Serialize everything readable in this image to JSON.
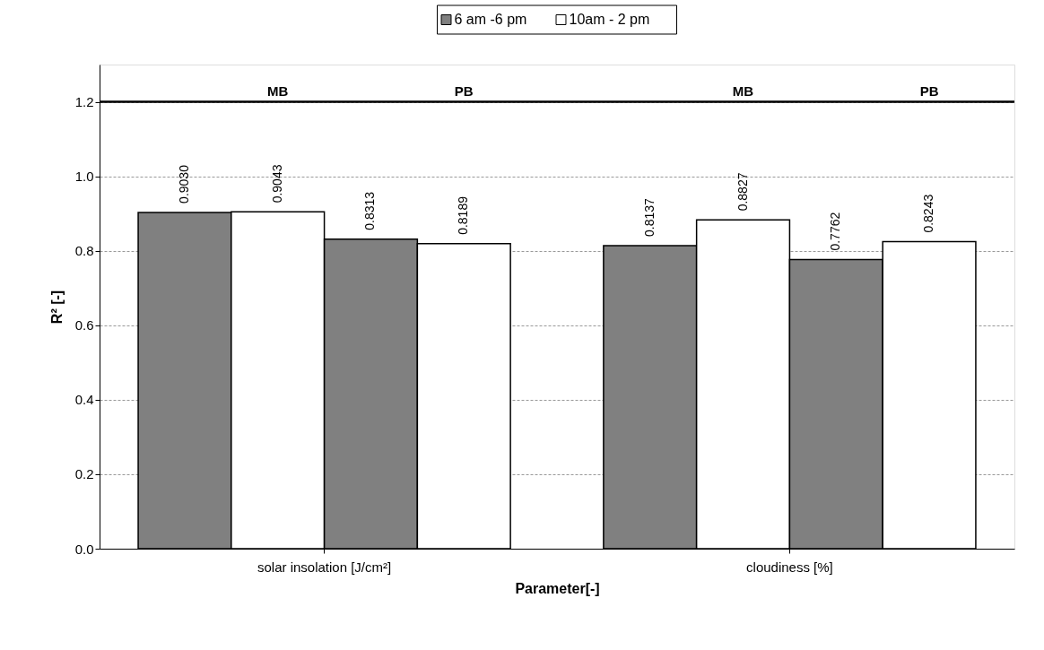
{
  "chart_data": {
    "type": "bar",
    "xlabel": "Parameter[-]",
    "ylabel": "R² [-]",
    "categories": [
      "solar insolation [J/cm²]",
      "cloudiness [%]"
    ],
    "series": [
      {
        "name": "6 am -6 pm",
        "color": "#808080",
        "values": [
          0.903,
          0.8137
        ],
        "value_labels": [
          "0.9030",
          "0.8137"
        ]
      },
      {
        "name": "10am - 2 pm",
        "color": "#ffffff",
        "values": [
          0.9043,
          0.8827
        ],
        "value_labels": [
          "0.9043",
          "0.8827"
        ]
      },
      {
        "color": "#808080",
        "values": [
          0.8313,
          0.7762
        ],
        "value_labels": [
          "0.8313",
          "0.7762"
        ]
      },
      {
        "color": "#ffffff",
        "values": [
          0.8189,
          0.8243
        ],
        "value_labels": [
          "0.8189",
          "0.8243"
        ]
      }
    ],
    "annotations": [
      "MB",
      "PB",
      "MB",
      "PB"
    ],
    "ref_lines": [
      {
        "axis": "y",
        "value": 1.2,
        "color": "#000000"
      }
    ],
    "ylim": [
      0,
      1.3
    ],
    "yticks": [
      {
        "value": 0,
        "label": "0.0"
      },
      {
        "value": 0.2,
        "label": "0.2"
      },
      {
        "value": 0.4,
        "label": "0.4"
      },
      {
        "value": 0.6,
        "label": "0.6"
      },
      {
        "value": 0.8,
        "label": "0.8"
      },
      {
        "value": 1.0,
        "label": "1.0"
      },
      {
        "value": 1.2,
        "label": "1.2"
      }
    ],
    "grid": "y",
    "legend": "top"
  }
}
